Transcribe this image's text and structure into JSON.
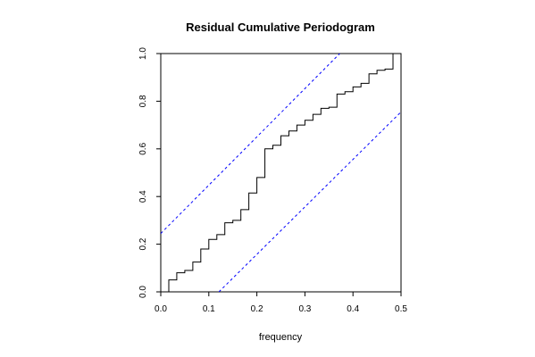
{
  "chart_data": {
    "type": "line",
    "title": "Residual Cumulative Periodogram",
    "xlabel": "frequency",
    "ylabel": "",
    "xlim": [
      0,
      0.5
    ],
    "ylim": [
      0,
      1
    ],
    "x_ticks": [
      "0.0",
      "0.1",
      "0.2",
      "0.3",
      "0.4",
      "0.5"
    ],
    "y_ticks": [
      "0.0",
      "0.2",
      "0.4",
      "0.6",
      "0.8",
      "1.0"
    ],
    "grid": false,
    "series": [
      {
        "style": "step",
        "color": "#000000",
        "x": [
          0.0167,
          0.0333,
          0.05,
          0.0667,
          0.0833,
          0.1,
          0.1167,
          0.1333,
          0.15,
          0.1667,
          0.1833,
          0.2,
          0.2167,
          0.2333,
          0.25,
          0.2667,
          0.2833,
          0.3,
          0.3167,
          0.3333,
          0.35,
          0.3667,
          0.3833,
          0.4,
          0.4167,
          0.4333,
          0.45,
          0.4667,
          0.4833
        ],
        "y": [
          0.05,
          0.08,
          0.09,
          0.125,
          0.18,
          0.22,
          0.24,
          0.29,
          0.3,
          0.345,
          0.415,
          0.48,
          0.6,
          0.615,
          0.655,
          0.675,
          0.7,
          0.72,
          0.745,
          0.77,
          0.775,
          0.83,
          0.84,
          0.86,
          0.875,
          0.915,
          0.93,
          0.935,
          1.0
        ]
      },
      {
        "style": "dashed",
        "color": "#0000ff",
        "x": [
          0.0,
          0.3725
        ],
        "y": [
          0.245,
          1.0
        ]
      },
      {
        "style": "dashed",
        "color": "#0000ff",
        "x": [
          0.121,
          0.5
        ],
        "y": [
          0.0,
          0.755
        ]
      }
    ]
  }
}
